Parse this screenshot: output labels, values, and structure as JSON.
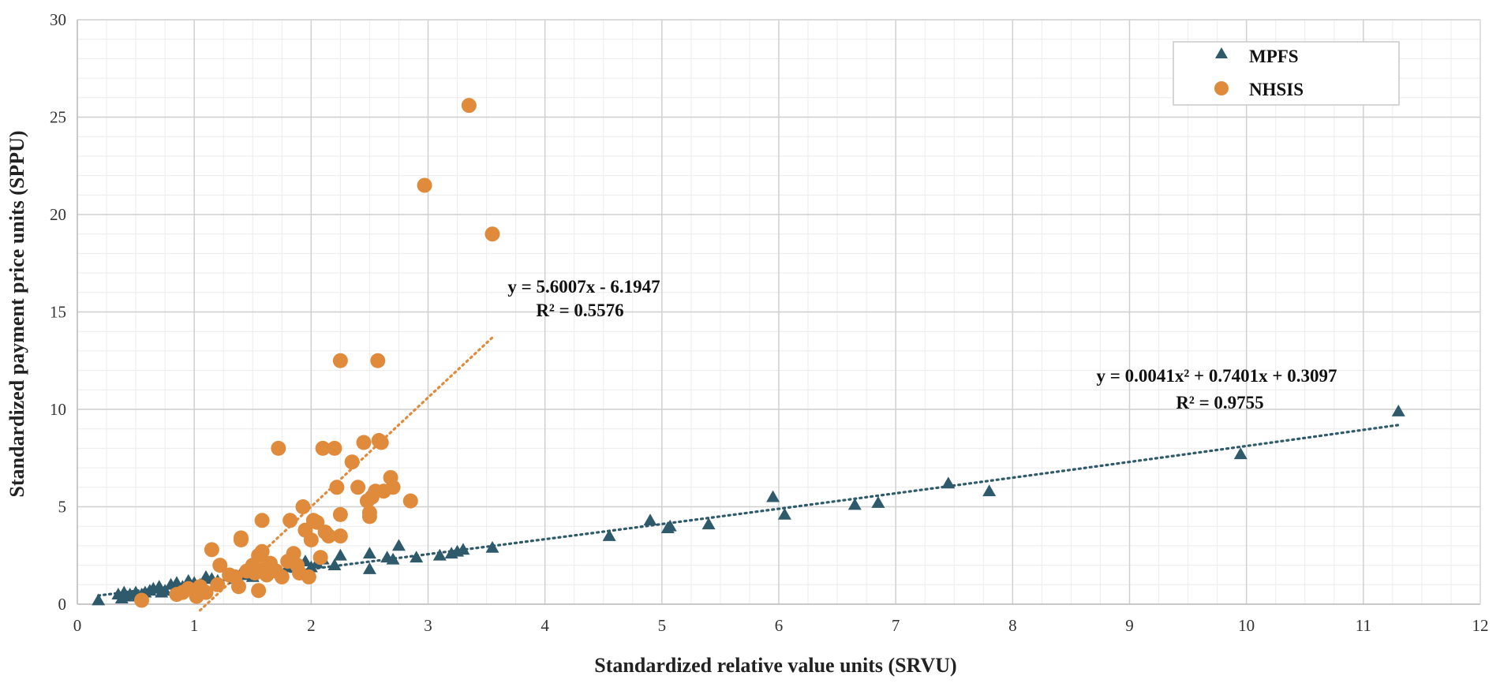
{
  "chart_data": {
    "type": "scatter",
    "title": "",
    "xlabel": "Standardized relative value units (SRVU)",
    "ylabel": "Standardized payment price units (SPPU)",
    "xlim": [
      0,
      12
    ],
    "ylim": [
      0,
      30
    ],
    "x_ticks": [
      "0",
      "1",
      "2",
      "3",
      "4",
      "5",
      "6",
      "7",
      "8",
      "9",
      "10",
      "11",
      "12"
    ],
    "y_ticks": [
      "0",
      "5",
      "10",
      "15",
      "20",
      "25",
      "30"
    ],
    "x_minor_step": 0.25,
    "y_minor_step": 1,
    "grid": true,
    "legend_position": "top-right",
    "series": [
      {
        "name": "MPFS",
        "marker": "triangle",
        "color": "#2e5a6b",
        "points": [
          [
            0.18,
            0.2
          ],
          [
            0.35,
            0.5
          ],
          [
            0.38,
            0.3
          ],
          [
            0.4,
            0.6
          ],
          [
            0.42,
            0.4
          ],
          [
            0.45,
            0.5
          ],
          [
            0.5,
            0.6
          ],
          [
            0.52,
            0.4
          ],
          [
            0.55,
            0.5
          ],
          [
            0.58,
            0.6
          ],
          [
            0.62,
            0.7
          ],
          [
            0.65,
            0.8
          ],
          [
            0.7,
            0.9
          ],
          [
            0.72,
            0.6
          ],
          [
            0.75,
            0.7
          ],
          [
            0.8,
            1.0
          ],
          [
            0.85,
            1.1
          ],
          [
            0.9,
            0.9
          ],
          [
            0.95,
            1.2
          ],
          [
            1.0,
            1.1
          ],
          [
            1.05,
            1.0
          ],
          [
            1.1,
            1.4
          ],
          [
            1.15,
            1.3
          ],
          [
            1.2,
            1.2
          ],
          [
            1.3,
            1.5
          ],
          [
            1.35,
            1.3
          ],
          [
            1.4,
            1.6
          ],
          [
            1.45,
            1.5
          ],
          [
            1.5,
            1.4
          ],
          [
            1.55,
            1.6
          ],
          [
            1.6,
            1.7
          ],
          [
            1.7,
            1.8
          ],
          [
            1.8,
            1.9
          ],
          [
            1.9,
            2.0
          ],
          [
            1.95,
            2.2
          ],
          [
            2.0,
            1.9
          ],
          [
            2.05,
            2.1
          ],
          [
            2.1,
            2.3
          ],
          [
            2.2,
            2.0
          ],
          [
            2.25,
            2.5
          ],
          [
            2.5,
            1.8
          ],
          [
            2.5,
            2.6
          ],
          [
            2.65,
            2.4
          ],
          [
            2.7,
            2.3
          ],
          [
            2.75,
            3.0
          ],
          [
            2.9,
            2.4
          ],
          [
            3.1,
            2.5
          ],
          [
            3.2,
            2.6
          ],
          [
            3.25,
            2.7
          ],
          [
            3.3,
            2.8
          ],
          [
            3.55,
            2.9
          ],
          [
            4.55,
            3.5
          ],
          [
            4.9,
            4.3
          ],
          [
            5.05,
            3.9
          ],
          [
            5.07,
            4.0
          ],
          [
            5.4,
            4.1
          ],
          [
            5.95,
            5.5
          ],
          [
            6.05,
            4.6
          ],
          [
            6.65,
            5.1
          ],
          [
            6.85,
            5.2
          ],
          [
            7.45,
            6.2
          ],
          [
            7.8,
            5.8
          ],
          [
            9.95,
            7.7
          ],
          [
            11.3,
            9.9
          ]
        ],
        "trendline": {
          "kind": "polynomial",
          "coefficients": [
            0.3097,
            0.7401,
            0.0041
          ],
          "x_range": [
            0.18,
            11.3
          ],
          "equation": "y = 0.0041x² + 0.7401x + 0.3097",
          "r_squared": "R² = 0.9755"
        }
      },
      {
        "name": "NHSIS",
        "marker": "circle",
        "color": "#e08a3c",
        "points": [
          [
            0.55,
            0.2
          ],
          [
            0.85,
            0.5
          ],
          [
            0.9,
            0.6
          ],
          [
            0.95,
            0.8
          ],
          [
            1.0,
            0.7
          ],
          [
            1.02,
            0.4
          ],
          [
            1.05,
            0.9
          ],
          [
            1.1,
            0.6
          ],
          [
            1.15,
            2.8
          ],
          [
            1.2,
            1.0
          ],
          [
            1.22,
            2.0
          ],
          [
            1.3,
            1.5
          ],
          [
            1.35,
            1.4
          ],
          [
            1.38,
            0.9
          ],
          [
            1.4,
            3.4
          ],
          [
            1.4,
            3.3
          ],
          [
            1.45,
            1.7
          ],
          [
            1.5,
            2.0
          ],
          [
            1.52,
            1.6
          ],
          [
            1.55,
            2.5
          ],
          [
            1.55,
            0.7
          ],
          [
            1.58,
            4.3
          ],
          [
            1.58,
            2.7
          ],
          [
            1.6,
            1.8
          ],
          [
            1.62,
            1.5
          ],
          [
            1.65,
            2.1
          ],
          [
            1.7,
            1.7
          ],
          [
            1.72,
            8.0
          ],
          [
            1.75,
            1.4
          ],
          [
            1.8,
            2.2
          ],
          [
            1.82,
            4.3
          ],
          [
            1.85,
            2.6
          ],
          [
            1.88,
            2.0
          ],
          [
            1.9,
            1.6
          ],
          [
            1.93,
            5.0
          ],
          [
            1.95,
            3.8
          ],
          [
            1.98,
            1.4
          ],
          [
            2.0,
            3.3
          ],
          [
            2.02,
            4.3
          ],
          [
            2.05,
            4.2
          ],
          [
            2.08,
            2.4
          ],
          [
            2.1,
            8.0
          ],
          [
            2.12,
            3.7
          ],
          [
            2.15,
            3.5
          ],
          [
            2.2,
            8.0
          ],
          [
            2.22,
            6.0
          ],
          [
            2.25,
            4.6
          ],
          [
            2.25,
            3.5
          ],
          [
            2.25,
            12.5
          ],
          [
            2.35,
            7.3
          ],
          [
            2.4,
            6.0
          ],
          [
            2.45,
            8.3
          ],
          [
            2.48,
            5.3
          ],
          [
            2.5,
            4.5
          ],
          [
            2.5,
            4.7
          ],
          [
            2.52,
            5.5
          ],
          [
            2.55,
            5.8
          ],
          [
            2.57,
            12.5
          ],
          [
            2.58,
            8.4
          ],
          [
            2.6,
            8.3
          ],
          [
            2.62,
            5.8
          ],
          [
            2.68,
            6.5
          ],
          [
            2.7,
            6.0
          ],
          [
            2.85,
            5.3
          ],
          [
            2.97,
            21.5
          ],
          [
            3.35,
            25.6
          ],
          [
            3.55,
            19.0
          ]
        ],
        "trendline": {
          "kind": "linear",
          "coefficients": [
            -6.1947,
            5.6007
          ],
          "x_range": [
            1.05,
            3.55
          ],
          "equation": "y = 5.6007x - 6.1947",
          "r_squared": "R² = 0.5576"
        }
      }
    ]
  }
}
